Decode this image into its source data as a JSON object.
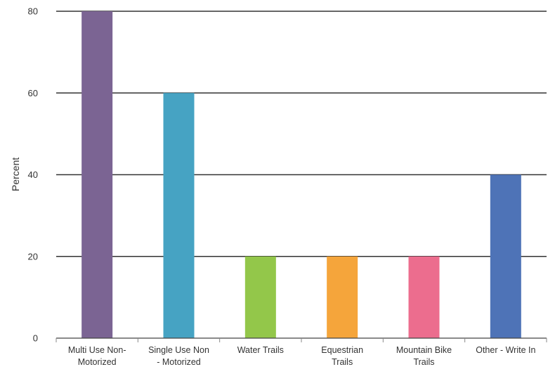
{
  "chart_data": {
    "type": "bar",
    "title": "",
    "xlabel": "",
    "ylabel": "Percent",
    "ylim": [
      0,
      80
    ],
    "yticks": [
      0,
      20,
      40,
      60,
      80
    ],
    "categories": [
      [
        "Multi Use Non-",
        "Motorized"
      ],
      [
        "Single Use Non",
        "- Motorized"
      ],
      [
        "Water Trails"
      ],
      [
        "Equestrian",
        "Trails"
      ],
      [
        "Mountain Bike",
        "Trails"
      ],
      [
        "Other - Write In"
      ]
    ],
    "values": [
      80,
      60,
      20,
      20,
      20,
      40
    ],
    "colors": [
      "#7b6493",
      "#46a3c3",
      "#93c74a",
      "#f5a53b",
      "#ec6d8e",
      "#4e73b7"
    ],
    "grid": true,
    "legend": "none"
  }
}
